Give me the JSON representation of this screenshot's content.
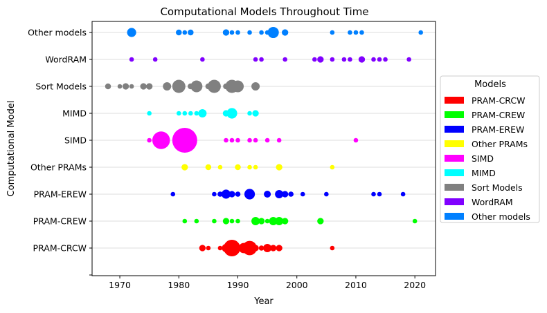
{
  "chart_data": {
    "type": "scatter",
    "title": "Computational Models Throughout Time",
    "xlabel": "Year",
    "ylabel": "Computational Model",
    "xlim": [
      1965.3,
      2023.5
    ],
    "x_ticks": [
      1970,
      1980,
      1990,
      2000,
      2010,
      2020
    ],
    "categories": [
      "PRAM-CRCW",
      "PRAM-CREW",
      "PRAM-EREW",
      "Other PRAMs",
      "SIMD",
      "MIMD",
      "Sort Models",
      "WordRAM",
      "Other models"
    ],
    "grid": "horizontal",
    "legend": {
      "title": "Models",
      "placement": "right"
    },
    "series": [
      {
        "name": "PRAM-CRCW",
        "color": "#ff0000",
        "row": 0,
        "points": [
          [
            1984,
            6
          ],
          [
            1985,
            3
          ],
          [
            1987,
            3
          ],
          [
            1988,
            10
          ],
          [
            1989,
            40
          ],
          [
            1990,
            6
          ],
          [
            1991,
            15
          ],
          [
            1992,
            30
          ],
          [
            1993,
            6
          ],
          [
            1994,
            4
          ],
          [
            1995,
            10
          ],
          [
            1996,
            6
          ],
          [
            1997,
            6
          ],
          [
            2006,
            3
          ]
        ]
      },
      {
        "name": "PRAM-CREW",
        "color": "#00ff00",
        "row": 1,
        "points": [
          [
            1981,
            3
          ],
          [
            1983,
            3
          ],
          [
            1986,
            3
          ],
          [
            1988,
            6
          ],
          [
            1989,
            3
          ],
          [
            1990,
            3
          ],
          [
            1993,
            10
          ],
          [
            1994,
            6
          ],
          [
            1995,
            3
          ],
          [
            1996,
            10
          ],
          [
            1997,
            10
          ],
          [
            1998,
            6
          ],
          [
            2004,
            6
          ],
          [
            2020,
            3
          ]
        ]
      },
      {
        "name": "PRAM-EREW",
        "color": "#0000ff",
        "row": 2,
        "points": [
          [
            1979,
            3
          ],
          [
            1986,
            3
          ],
          [
            1987,
            4
          ],
          [
            1988,
            12
          ],
          [
            1989,
            6
          ],
          [
            1990,
            4
          ],
          [
            1992,
            16
          ],
          [
            1995,
            7
          ],
          [
            1997,
            10
          ],
          [
            1998,
            6
          ],
          [
            1999,
            4
          ],
          [
            2001,
            3
          ],
          [
            2005,
            3
          ],
          [
            2013,
            3
          ],
          [
            2014,
            3
          ],
          [
            2018,
            3
          ]
        ]
      },
      {
        "name": "Other PRAMs",
        "color": "#ffff00",
        "row": 3,
        "points": [
          [
            1981,
            6
          ],
          [
            1985,
            5
          ],
          [
            1987,
            3
          ],
          [
            1990,
            5
          ],
          [
            1992,
            3
          ],
          [
            1993,
            3
          ],
          [
            1997,
            6
          ],
          [
            2006,
            3
          ]
        ]
      },
      {
        "name": "SIMD",
        "color": "#ff00ff",
        "row": 4,
        "points": [
          [
            1975,
            3
          ],
          [
            1977,
            45
          ],
          [
            1981,
            90
          ],
          [
            1988,
            3
          ],
          [
            1989,
            3
          ],
          [
            1990,
            3
          ],
          [
            1992,
            3
          ],
          [
            1993,
            3
          ],
          [
            1995,
            3
          ],
          [
            1997,
            3
          ],
          [
            2010,
            3
          ]
        ]
      },
      {
        "name": "MIMD",
        "color": "#00ffff",
        "row": 5,
        "points": [
          [
            1975,
            3
          ],
          [
            1980,
            3
          ],
          [
            1981,
            3
          ],
          [
            1982,
            3
          ],
          [
            1983,
            3
          ],
          [
            1984,
            10
          ],
          [
            1988,
            6
          ],
          [
            1989,
            16
          ],
          [
            1992,
            3
          ],
          [
            1993,
            6
          ]
        ]
      },
      {
        "name": "Sort Models",
        "color": "#808080",
        "row": 6,
        "points": [
          [
            1968,
            5
          ],
          [
            1970,
            3
          ],
          [
            1971,
            6
          ],
          [
            1972,
            3
          ],
          [
            1974,
            6
          ],
          [
            1975,
            6
          ],
          [
            1978,
            10
          ],
          [
            1980,
            25
          ],
          [
            1982,
            5
          ],
          [
            1983,
            20
          ],
          [
            1985,
            5
          ],
          [
            1986,
            25
          ],
          [
            1988,
            5
          ],
          [
            1989,
            25
          ],
          [
            1990,
            20
          ],
          [
            1993,
            10
          ]
        ]
      },
      {
        "name": "WordRAM",
        "color": "#8000ff",
        "row": 7,
        "points": [
          [
            1972,
            3
          ],
          [
            1976,
            3
          ],
          [
            1984,
            3
          ],
          [
            1993,
            3
          ],
          [
            1994,
            3
          ],
          [
            1998,
            3
          ],
          [
            2003,
            3
          ],
          [
            2004,
            6
          ],
          [
            2006,
            3
          ],
          [
            2008,
            3
          ],
          [
            2009,
            3
          ],
          [
            2011,
            6
          ],
          [
            2013,
            3
          ],
          [
            2014,
            3
          ],
          [
            2015,
            3
          ],
          [
            2019,
            3
          ]
        ]
      },
      {
        "name": "Other models",
        "color": "#0080ff",
        "row": 8,
        "points": [
          [
            1972,
            12
          ],
          [
            1980,
            5
          ],
          [
            1981,
            3
          ],
          [
            1982,
            5
          ],
          [
            1988,
            6
          ],
          [
            1989,
            3
          ],
          [
            1990,
            3
          ],
          [
            1992,
            3
          ],
          [
            1994,
            3
          ],
          [
            1995,
            3
          ],
          [
            1996,
            18
          ],
          [
            1998,
            6
          ],
          [
            2006,
            3
          ],
          [
            2009,
            3
          ],
          [
            2010,
            3
          ],
          [
            2011,
            3
          ],
          [
            2021,
            3
          ]
        ]
      }
    ]
  }
}
